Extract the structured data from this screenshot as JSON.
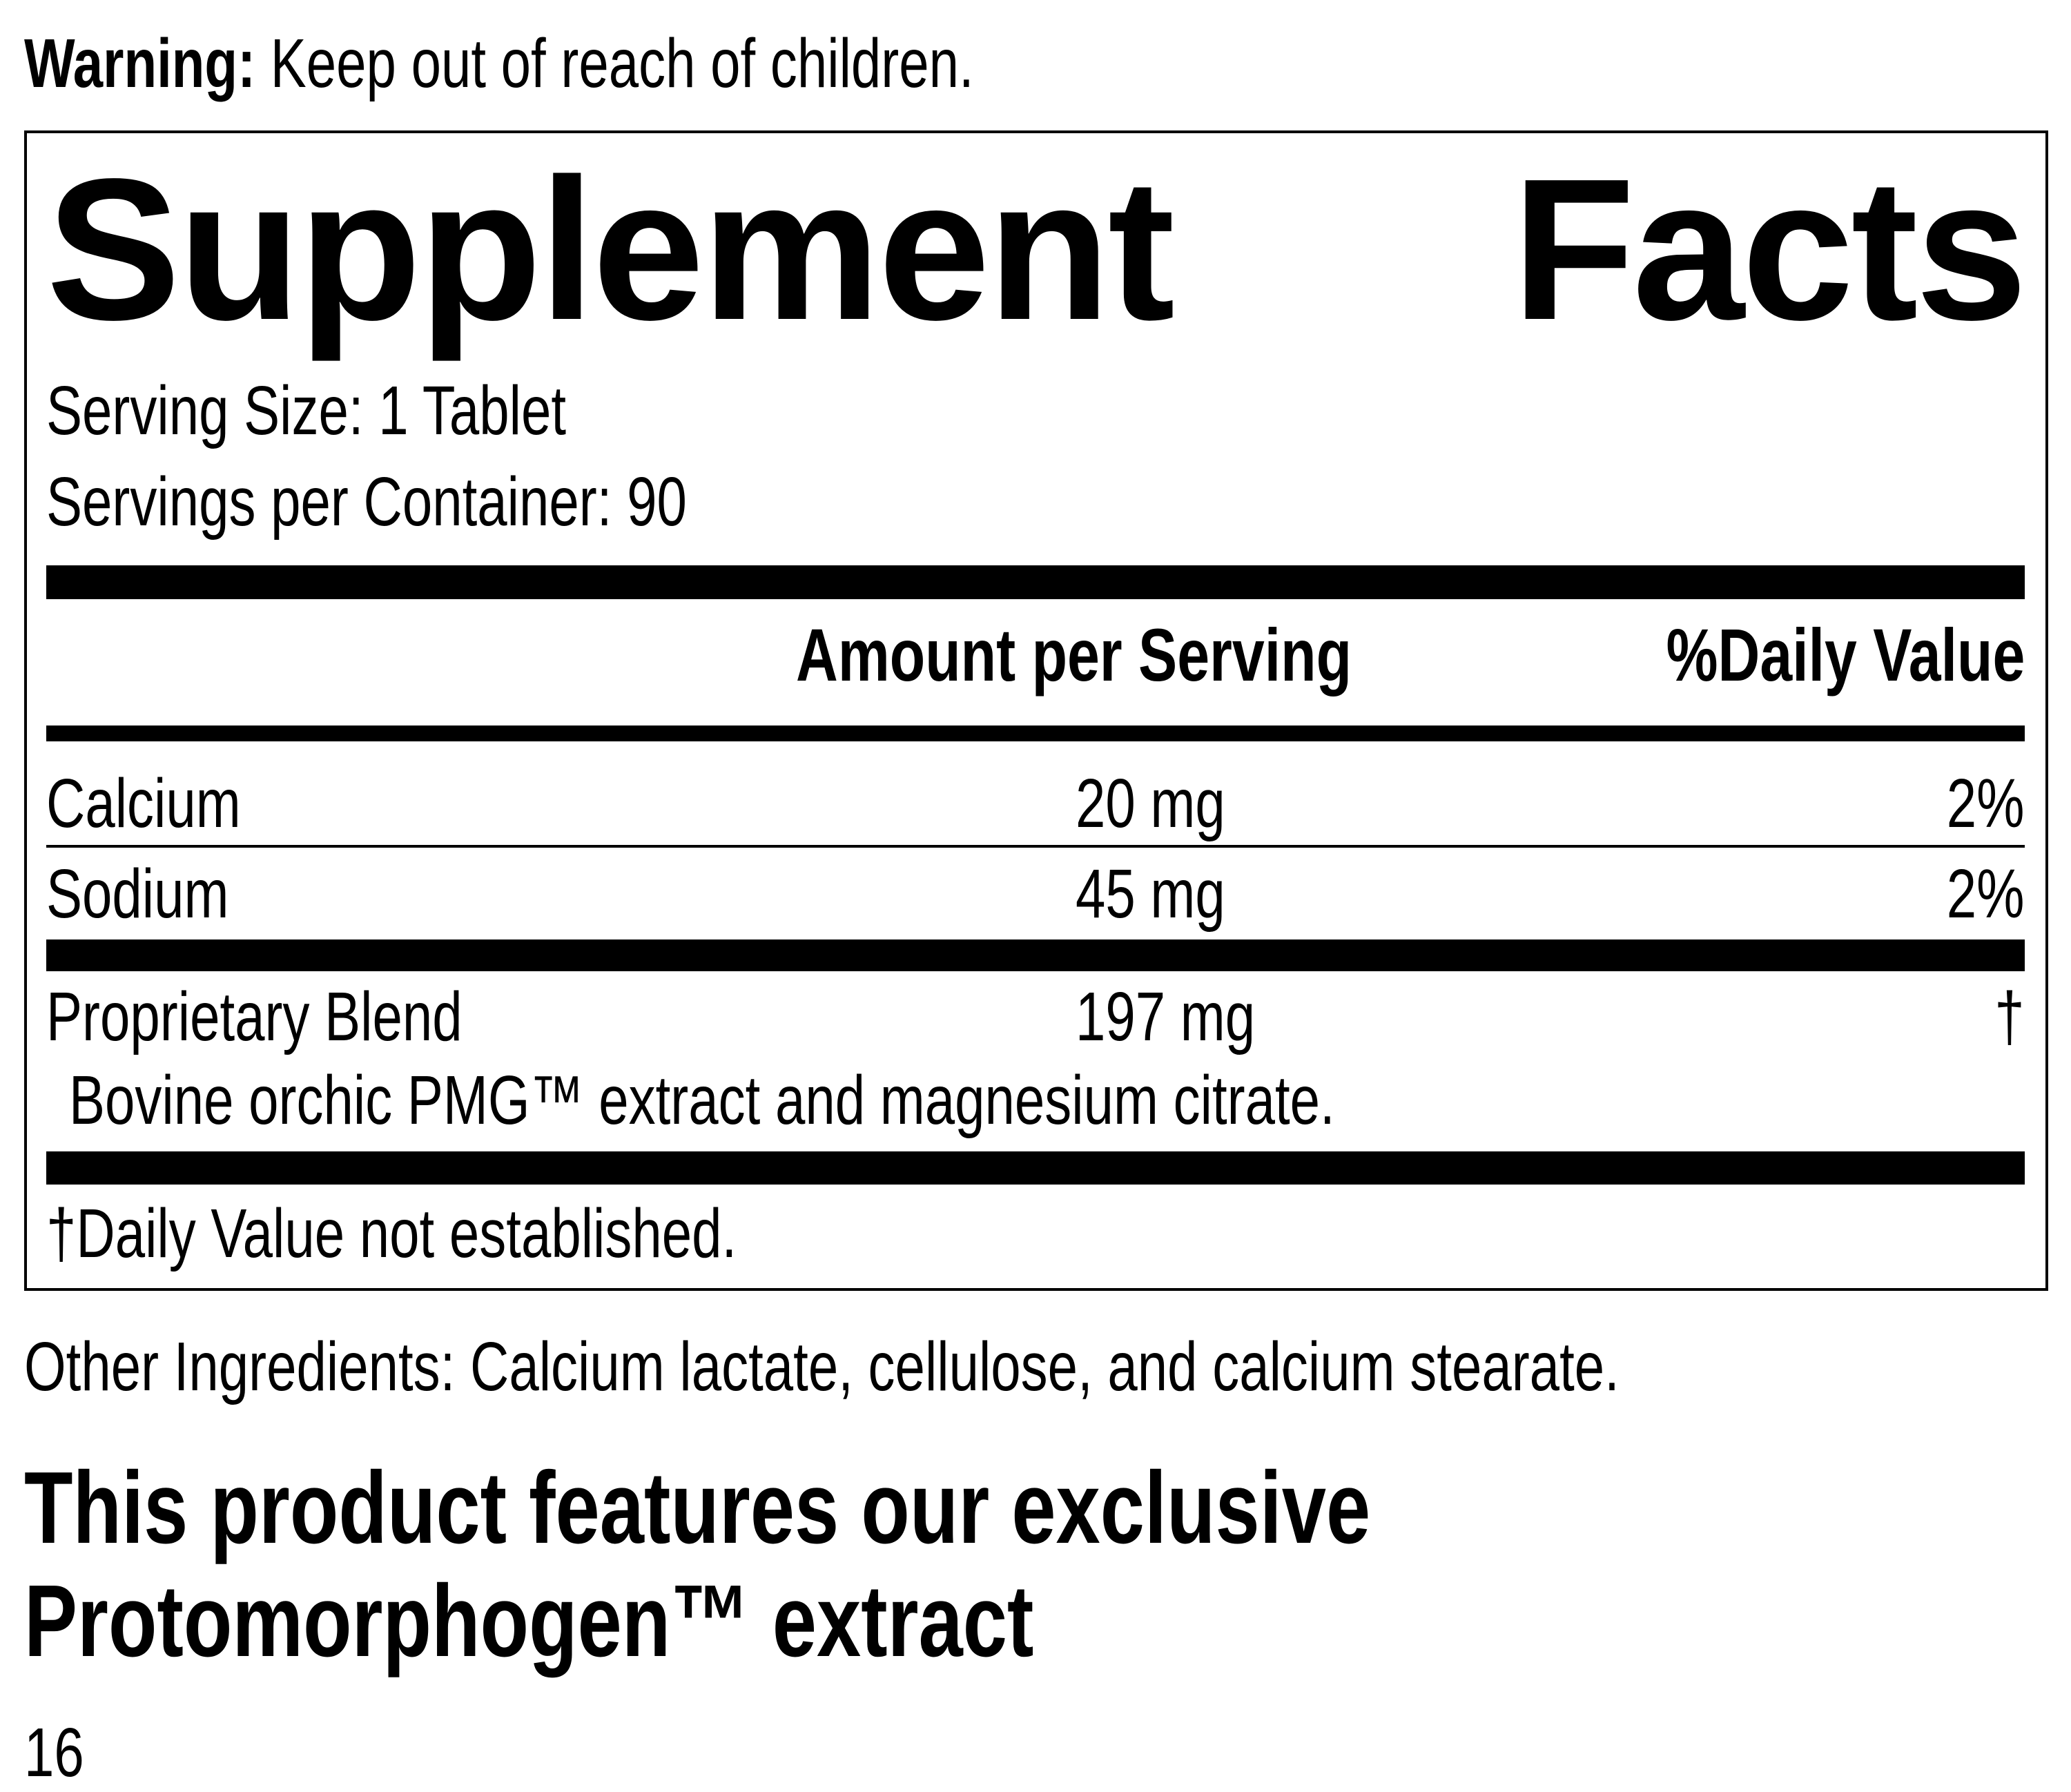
{
  "warning": {
    "label": "Warning:",
    "text": "Keep out of reach of children."
  },
  "facts": {
    "title_words": [
      "Supplement",
      "Facts"
    ],
    "serving_size": "Serving Size: 1 Tablet",
    "servings_per_container": "Servings per Container: 90",
    "columns": {
      "amount": "Amount per Serving",
      "daily_value": "%Daily Value"
    },
    "rows": [
      {
        "name": "Calcium",
        "amount": "20 mg",
        "dv": "2%"
      },
      {
        "name": "Sodium",
        "amount": "45 mg",
        "dv": "2%"
      },
      {
        "name": "Proprietary Blend",
        "amount": "197 mg",
        "dv": "†"
      }
    ],
    "blend_ingredients": "Bovine orchic PMG™ extract and magnesium citrate.",
    "footnote": "†Daily Value not established."
  },
  "other_ingredients": "Other Ingredients: Calcium lactate, cellulose, and calcium stearate.",
  "feature_lines": [
    "This product features our exclusive",
    "Protomorphogen™ extract"
  ],
  "page_number": "16"
}
